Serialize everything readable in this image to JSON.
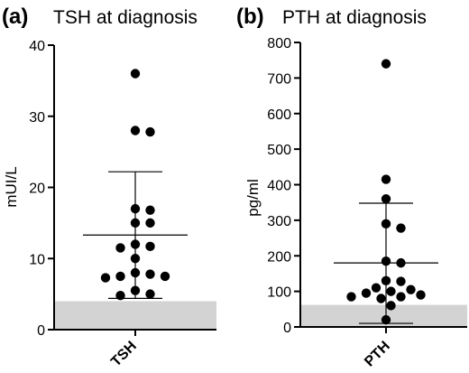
{
  "chart_data": [
    {
      "type": "scatter",
      "panel": "(a)",
      "title": "TSH at diagnosis",
      "ylabel": "mUI/L",
      "category": "TSH",
      "ylim": [
        0,
        40
      ],
      "yticks": [
        "0",
        "10",
        "20",
        "30",
        "40"
      ],
      "reference_range": [
        0,
        4
      ],
      "mean": 13.3,
      "sd_upper": 22.2,
      "sd_lower": 4.4,
      "values": [
        36,
        28,
        27.8,
        17,
        16.8,
        15,
        15,
        12,
        11.7,
        11.5,
        10,
        8,
        7.8,
        7.5,
        7.5,
        7.3,
        5.5,
        5,
        4.8
      ]
    },
    {
      "type": "scatter",
      "panel": "(b)",
      "title": "PTH at diagnosis",
      "ylabel": "pg/ml",
      "category": "PTH",
      "ylim": [
        0,
        800
      ],
      "yticks": [
        "0",
        "100",
        "200",
        "300",
        "400",
        "500",
        "600",
        "700",
        "800"
      ],
      "reference_range": [
        0,
        62
      ],
      "mean": 180,
      "sd_upper": 348,
      "sd_lower": 10,
      "values": [
        740,
        415,
        360,
        290,
        278,
        185,
        180,
        130,
        128,
        110,
        105,
        100,
        95,
        90,
        85,
        85,
        80,
        60,
        20
      ]
    }
  ]
}
